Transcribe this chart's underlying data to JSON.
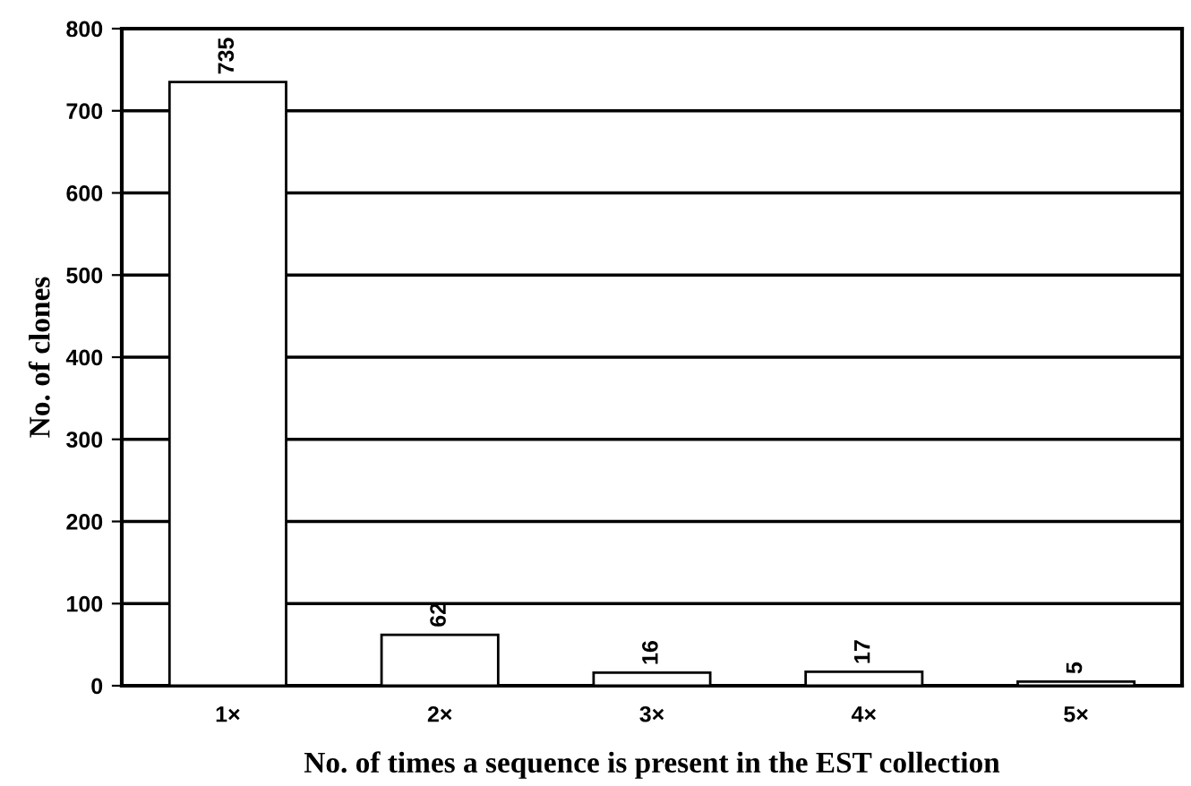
{
  "chart_data": {
    "type": "bar",
    "xlabel": "No. of times a sequence is present in the EST collection",
    "ylabel": "No. of clones",
    "categories": [
      "1×",
      "2×",
      "3×",
      "4×",
      "5×"
    ],
    "values": [
      735,
      62,
      16,
      17,
      5
    ],
    "color": "#ffffff",
    "ylim": [
      0,
      800
    ],
    "yticks": [
      0,
      100,
      200,
      300,
      400,
      500,
      600,
      700,
      800
    ],
    "grid": "y",
    "data_labels": true
  }
}
